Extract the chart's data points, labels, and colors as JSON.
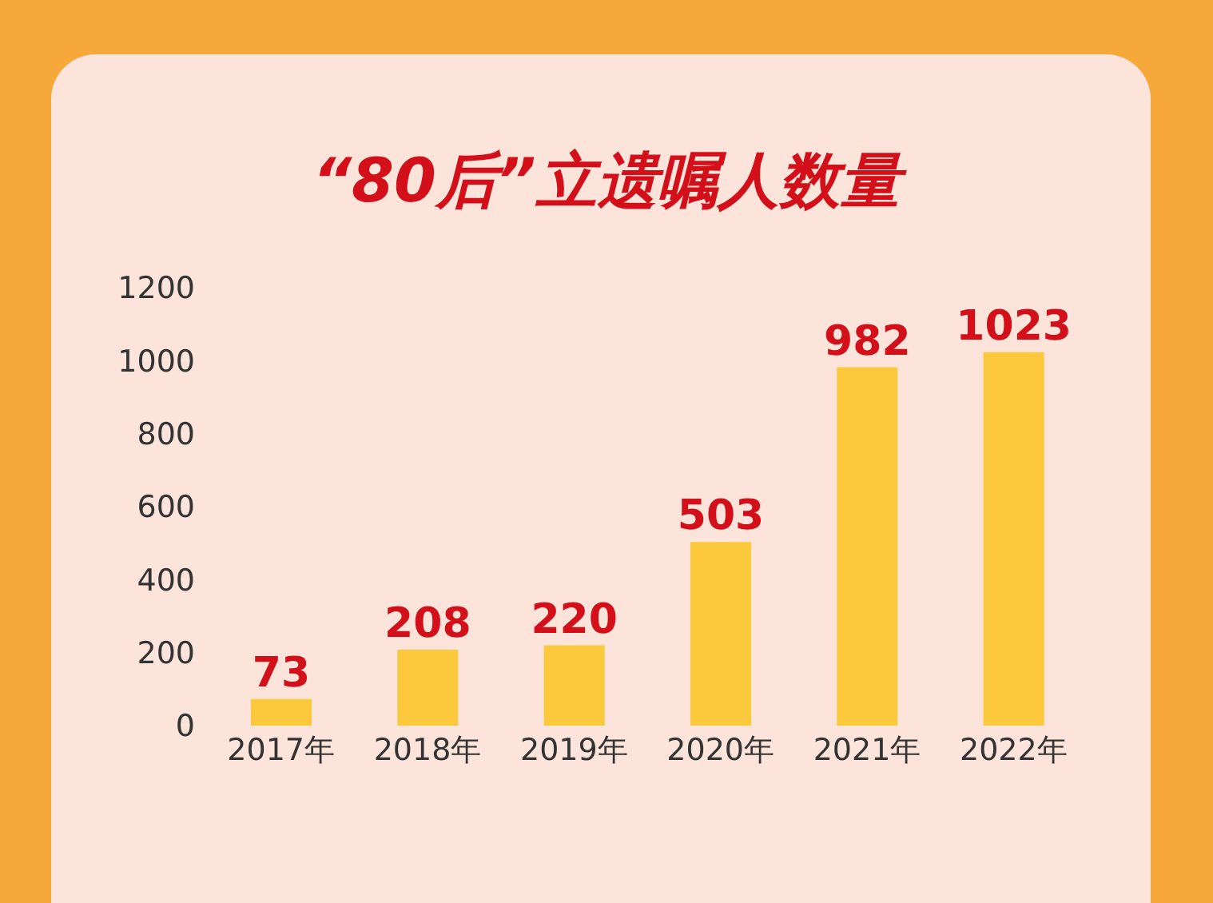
{
  "chart_data": {
    "type": "bar",
    "title": "“80后”立遗嘱人数量",
    "categories": [
      "2017年",
      "2018年",
      "2019年",
      "2020年",
      "2021年",
      "2022年"
    ],
    "values": [
      73,
      208,
      220,
      503,
      982,
      1023
    ],
    "color": "#fcc83c",
    "ylim": [
      0,
      1200
    ],
    "yticks": [
      0,
      200,
      400,
      600,
      800,
      1000,
      1200
    ],
    "grid": false,
    "data_labels": true
  }
}
